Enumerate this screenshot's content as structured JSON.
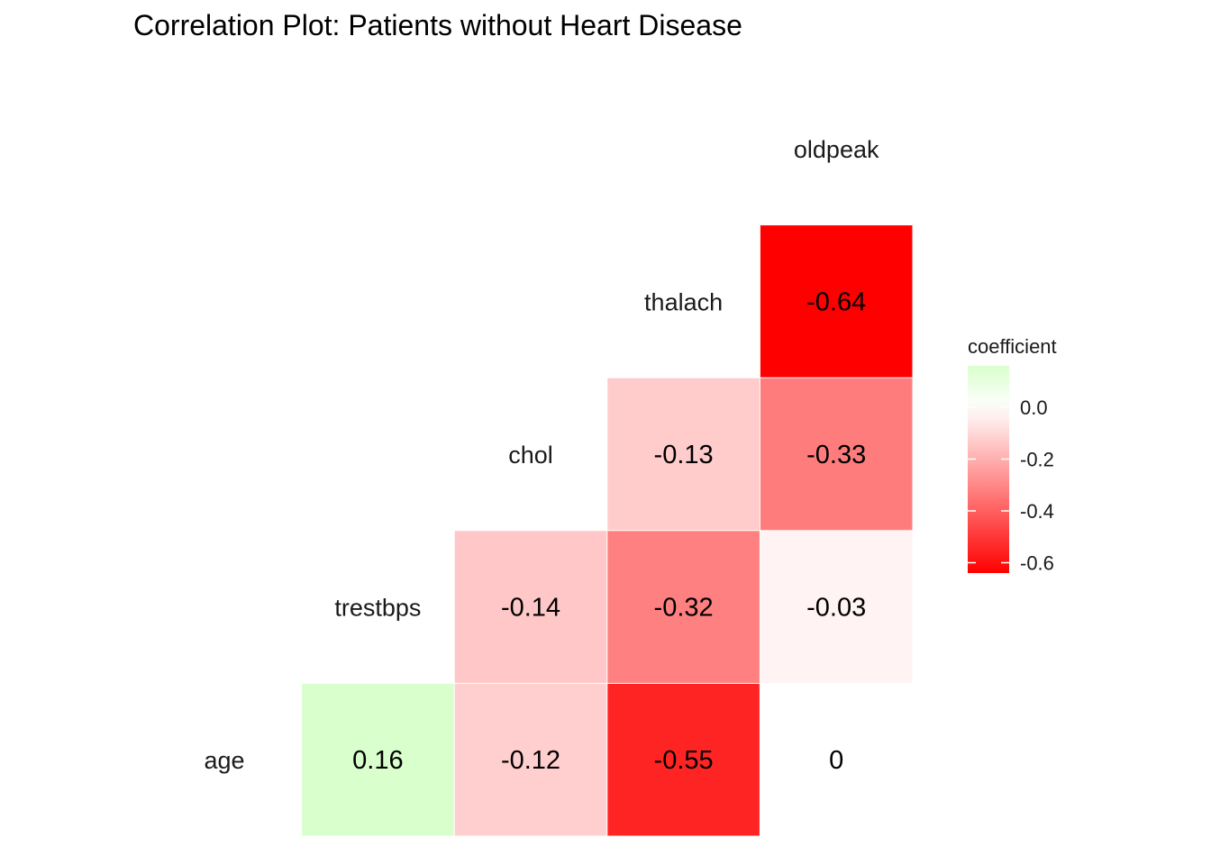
{
  "chart_data": {
    "type": "heatmap",
    "title": "Correlation Plot: Patients without Heart Disease",
    "variables": [
      "age",
      "trestbps",
      "chol",
      "thalach",
      "oldpeak"
    ],
    "cells": [
      {
        "row": "age",
        "col": "trestbps",
        "value": 0.16,
        "label": "0.16"
      },
      {
        "row": "age",
        "col": "chol",
        "value": -0.12,
        "label": "-0.12"
      },
      {
        "row": "age",
        "col": "thalach",
        "value": -0.55,
        "label": "-0.55"
      },
      {
        "row": "age",
        "col": "oldpeak",
        "value": 0.0,
        "label": "0"
      },
      {
        "row": "trestbps",
        "col": "chol",
        "value": -0.14,
        "label": "-0.14"
      },
      {
        "row": "trestbps",
        "col": "thalach",
        "value": -0.32,
        "label": "-0.32"
      },
      {
        "row": "trestbps",
        "col": "oldpeak",
        "value": -0.03,
        "label": "-0.03"
      },
      {
        "row": "chol",
        "col": "thalach",
        "value": -0.13,
        "label": "-0.13"
      },
      {
        "row": "chol",
        "col": "oldpeak",
        "value": -0.33,
        "label": "-0.33"
      },
      {
        "row": "thalach",
        "col": "oldpeak",
        "value": -0.64,
        "label": "-0.64"
      }
    ],
    "legend": {
      "title": "coefficient",
      "position": "right",
      "range": [
        -0.64,
        0.16
      ],
      "ticks": [
        {
          "value": 0.0,
          "label": "0.0"
        },
        {
          "value": -0.2,
          "label": "-0.2"
        },
        {
          "value": -0.4,
          "label": "-0.4"
        },
        {
          "value": -0.6,
          "label": "-0.6"
        }
      ],
      "colors": {
        "low": "#ff0000",
        "mid": "#ffffff",
        "high": "#d9ffcc"
      },
      "midpoint": 0
    },
    "grid": false
  }
}
